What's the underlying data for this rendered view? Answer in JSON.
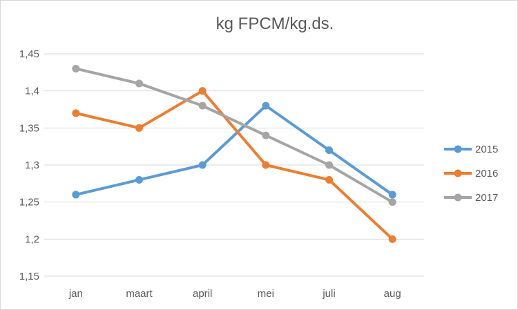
{
  "chart_data": {
    "type": "line",
    "title": "kg FPCM/kg.ds.",
    "xlabel": "",
    "ylabel": "",
    "categories": [
      "jan",
      "maart",
      "april",
      "mei",
      "juli",
      "aug"
    ],
    "ylim": [
      1.15,
      1.45
    ],
    "yticks": [
      1.15,
      1.2,
      1.25,
      1.3,
      1.35,
      1.4,
      1.45
    ],
    "ytick_labels": [
      "1,15",
      "1,2",
      "1,25",
      "1,3",
      "1,35",
      "1,4",
      "1,45"
    ],
    "grid": true,
    "legend_position": "right",
    "series": [
      {
        "name": "2015",
        "color": "#5b9bd5",
        "values": [
          1.26,
          1.28,
          1.3,
          1.38,
          1.32,
          1.26
        ]
      },
      {
        "name": "2016",
        "color": "#ed7d31",
        "values": [
          1.37,
          1.35,
          1.4,
          1.3,
          1.28,
          1.2
        ]
      },
      {
        "name": "2017",
        "color": "#a5a5a5",
        "values": [
          1.43,
          1.41,
          1.38,
          1.34,
          1.3,
          1.25
        ]
      }
    ]
  }
}
